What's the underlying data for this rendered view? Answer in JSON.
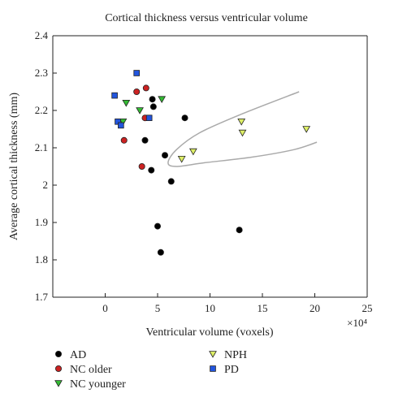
{
  "chart_data": {
    "type": "scatter",
    "title": "Cortical thickness versus ventricular volume",
    "xlabel": "Ventricular volume (voxels)",
    "ylabel": "Average cortical thickness (mm)",
    "x_multiplier_label": "×10⁴",
    "xlim": [
      -5,
      25
    ],
    "ylim": [
      1.7,
      2.4
    ],
    "x_ticks": [
      "0",
      "5",
      "10",
      "15",
      "20",
      "25"
    ],
    "y_ticks": [
      "1.7",
      "1.8",
      "1.9",
      "2",
      "2.1",
      "2.2",
      "2.3",
      "2.4"
    ],
    "grid": false,
    "legend_position": "bottom",
    "series": [
      {
        "name": "AD",
        "marker": "circle",
        "color": "#000000",
        "points": [
          {
            "x": 4.5,
            "y": 2.23
          },
          {
            "x": 4.6,
            "y": 2.21
          },
          {
            "x": 7.6,
            "y": 2.18
          },
          {
            "x": 3.8,
            "y": 2.12
          },
          {
            "x": 5.7,
            "y": 2.08
          },
          {
            "x": 4.4,
            "y": 2.04
          },
          {
            "x": 6.3,
            "y": 2.01
          },
          {
            "x": 5.0,
            "y": 1.89
          },
          {
            "x": 12.8,
            "y": 1.88
          },
          {
            "x": 5.3,
            "y": 1.82
          }
        ]
      },
      {
        "name": "NC older",
        "marker": "circle",
        "color": "#cc2222",
        "points": [
          {
            "x": 3.9,
            "y": 2.26
          },
          {
            "x": 3.0,
            "y": 2.25
          },
          {
            "x": 3.8,
            "y": 2.18
          },
          {
            "x": 1.8,
            "y": 2.12
          },
          {
            "x": 3.5,
            "y": 2.05
          }
        ]
      },
      {
        "name": "NC younger",
        "marker": "triangle-down",
        "color": "#33bb33",
        "points": [
          {
            "x": 2.0,
            "y": 2.22
          },
          {
            "x": 3.3,
            "y": 2.2
          },
          {
            "x": 1.7,
            "y": 2.17
          },
          {
            "x": 5.4,
            "y": 2.23
          }
        ]
      },
      {
        "name": "NPH",
        "marker": "triangle-down",
        "color": "#ddee66",
        "points": [
          {
            "x": 13.0,
            "y": 2.17
          },
          {
            "x": 19.2,
            "y": 2.15
          },
          {
            "x": 13.1,
            "y": 2.14
          },
          {
            "x": 8.4,
            "y": 2.09
          },
          {
            "x": 7.3,
            "y": 2.07
          }
        ]
      },
      {
        "name": "PD",
        "marker": "square",
        "color": "#2255dd",
        "points": [
          {
            "x": 3.0,
            "y": 2.3
          },
          {
            "x": 0.9,
            "y": 2.24
          },
          {
            "x": 1.2,
            "y": 2.17
          },
          {
            "x": 1.5,
            "y": 2.16
          },
          {
            "x": 4.2,
            "y": 2.18
          }
        ]
      }
    ],
    "decision_boundary": {
      "color": "#aaaaaa",
      "points": [
        {
          "x": 18.5,
          "y": 2.25
        },
        {
          "x": 13.0,
          "y": 2.19
        },
        {
          "x": 9.0,
          "y": 2.14
        },
        {
          "x": 6.8,
          "y": 2.095
        },
        {
          "x": 6.0,
          "y": 2.06
        },
        {
          "x": 6.8,
          "y": 2.05
        },
        {
          "x": 9.5,
          "y": 2.06
        },
        {
          "x": 14.0,
          "y": 2.075
        },
        {
          "x": 18.0,
          "y": 2.095
        },
        {
          "x": 20.2,
          "y": 2.115
        }
      ]
    }
  }
}
